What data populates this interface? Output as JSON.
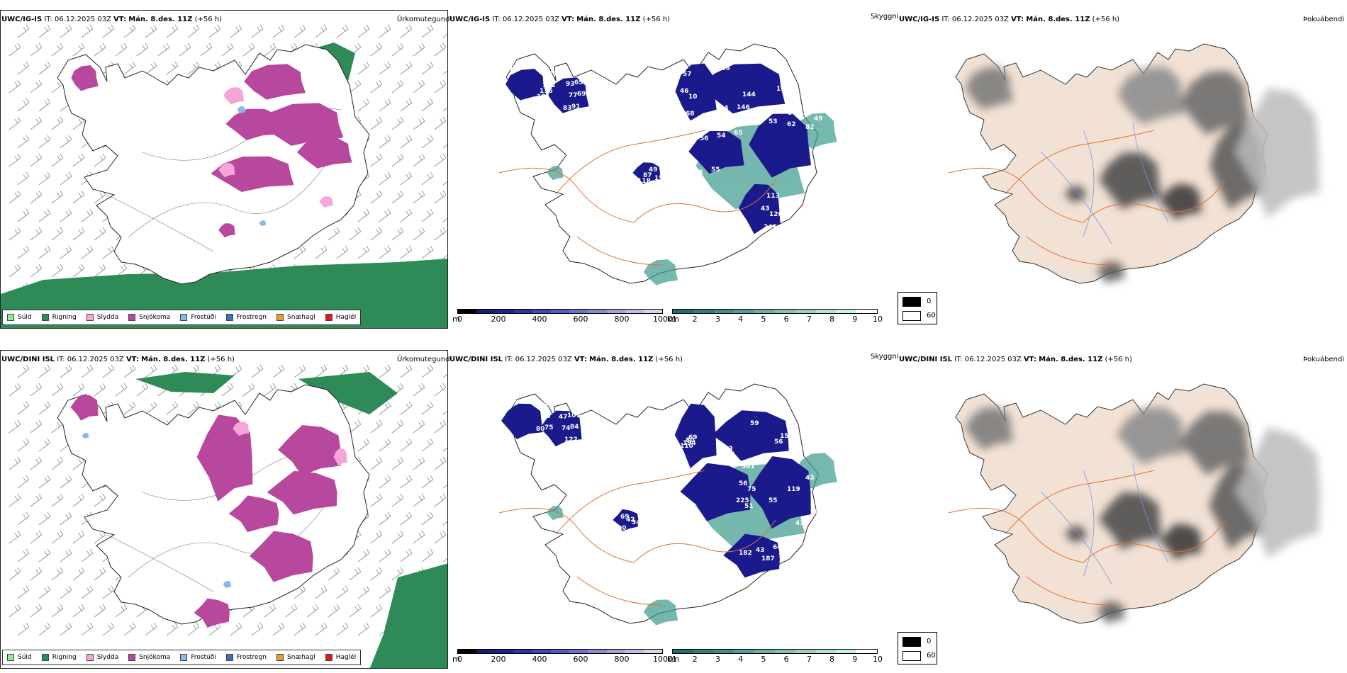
{
  "rows": [
    {
      "precip": {
        "model": "UWC/IG-IS",
        "it": "IT: 06.12.2025 03Z",
        "vt_label": "VT:",
        "vt": "Mán. 8.des. 11Z",
        "lead": "(+56 h)",
        "right": "Úrkomutegund"
      },
      "cloud": {
        "model": "UWC/IG-IS",
        "it": "IT: 06.12.2025 03Z",
        "vt_label": "VT:",
        "vt": "Mán. 8.des. 11Z",
        "lead": "(+56 h)",
        "right": "Skyggni"
      },
      "fog": {
        "model": "UWC/IG-IS",
        "it": "IT: 06.12.2025 03Z",
        "vt_label": "VT:",
        "vt": "Mán. 8.des. 11Z",
        "lead": "(+56 h)",
        "right": "Þokuábendi"
      },
      "numbers": [
        "67",
        "69",
        "10",
        "86",
        "82",
        "55",
        "50",
        "49",
        "46",
        "65",
        "68",
        "144",
        "49",
        "58",
        "126",
        "90",
        "67",
        "91",
        "57",
        "60",
        "53",
        "65",
        "113",
        "87",
        "122",
        "77",
        "46",
        "146",
        "62",
        "54",
        "241",
        "151",
        "116",
        "93",
        "34",
        "112",
        "82",
        "56",
        "43",
        "118",
        "101",
        "83",
        "166"
      ]
    },
    {
      "precip": {
        "model": "UWC/DINI ISL",
        "it": "IT: 06.12.2025 03Z",
        "vt_label": "VT:",
        "vt": "Mán. 8.des. 11Z",
        "lead": "(+56 h)",
        "right": "Úrkomutegund"
      },
      "cloud": {
        "model": "UWC/DINI ISL",
        "it": "IT: 06.12.2025 03Z",
        "vt_label": "VT:",
        "vt": "Mán. 8.des. 11Z",
        "lead": "(+56 h)",
        "right": "Skyggni"
      },
      "fog": {
        "model": "UWC/DINI ISL",
        "it": "IT: 06.12.2025 03Z",
        "vt_label": "VT:",
        "vt": "Mán. 8.des. 11Z",
        "lead": "(+56 h)",
        "right": "Þokuábendi"
      },
      "numbers": [
        "113",
        "84",
        "69",
        "77",
        "43",
        "75",
        "64",
        "69",
        "75",
        "107",
        "80",
        "56",
        "50",
        "51",
        "43",
        "42",
        "78",
        "122",
        "194",
        "59",
        "55",
        "301",
        "182",
        "34",
        "43",
        "74",
        "110",
        "65",
        "119",
        "56",
        "50",
        "33",
        "80",
        "47",
        "283",
        "159",
        "43",
        "225",
        "187",
        "90"
      ]
    }
  ],
  "precip_legend": [
    {
      "label": "Súld",
      "color": "#90ee90"
    },
    {
      "label": "Rigning",
      "color": "#2e8b57"
    },
    {
      "label": "Slydda",
      "color": "#f4a6d8"
    },
    {
      "label": "Snjókoma",
      "color": "#b8489e"
    },
    {
      "label": "Frostúði",
      "color": "#87b8ee"
    },
    {
      "label": "Frostregn",
      "color": "#3a6fc4"
    },
    {
      "label": "Snæhagl",
      "color": "#e89a2a"
    },
    {
      "label": "Haglél",
      "color": "#e01b1b"
    }
  ],
  "ceiling_bar": {
    "unit": "m",
    "ticks": [
      "0",
      "200",
      "400",
      "600",
      "800",
      "1000"
    ]
  },
  "vis_bar": {
    "unit": "km",
    "ticks": [
      "1",
      "2",
      "3",
      "4",
      "5",
      "6",
      "7",
      "8",
      "9",
      "10"
    ]
  },
  "fog_legend": {
    "low": "0",
    "high": "60"
  },
  "colors": {
    "rain": "#2e8b57",
    "snow": "#b8489e",
    "sleet": "#f4a6d8",
    "drizzle": "#90ee90",
    "freezing_drizzle": "#87b8ee",
    "freezing_rain": "#3a6fc4",
    "snow_grains": "#e89a2a",
    "hail": "#e01b1b",
    "ceiling_dark": "#1a1a8c",
    "vis_teal": "#3b9a8c",
    "land_fog": "#f2e2d5",
    "roads": "#e07030",
    "rivers": "#7f93e8"
  }
}
